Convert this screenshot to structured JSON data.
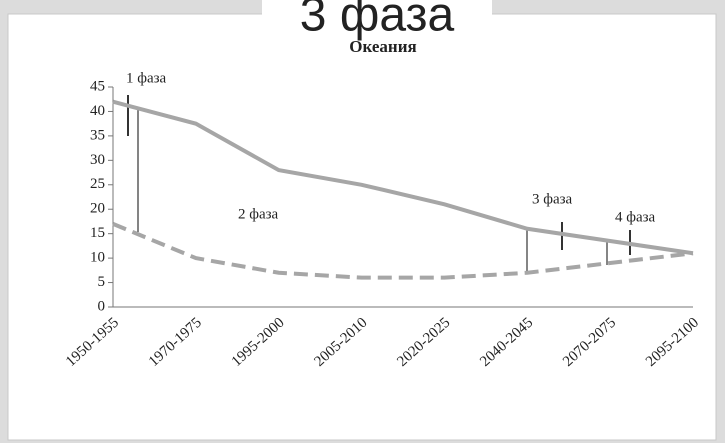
{
  "banner": "3 фаза",
  "chart_data": {
    "type": "line",
    "title": "Океания",
    "categories": [
      "1950-1955",
      "1970-1975",
      "1995-2000",
      "2005-2010",
      "2020-2025",
      "2040-2045",
      "2070-2075",
      "2095-2100"
    ],
    "series": [
      {
        "color": "#a6a6a6",
        "dashed": false,
        "values": [
          42,
          37.5,
          28,
          25,
          21,
          16,
          13.5,
          11
        ]
      },
      {
        "color": "#a6a6a6",
        "dashed": true,
        "values": [
          17,
          10,
          7,
          6,
          6,
          7,
          9,
          11
        ]
      }
    ],
    "ylim": [
      0,
      45
    ],
    "yticks": [
      0,
      5,
      10,
      15,
      20,
      25,
      30,
      35,
      40,
      45
    ],
    "annotations": [
      "1 фаза",
      "2 фаза",
      "3 фаза",
      "4 фаза"
    ]
  }
}
